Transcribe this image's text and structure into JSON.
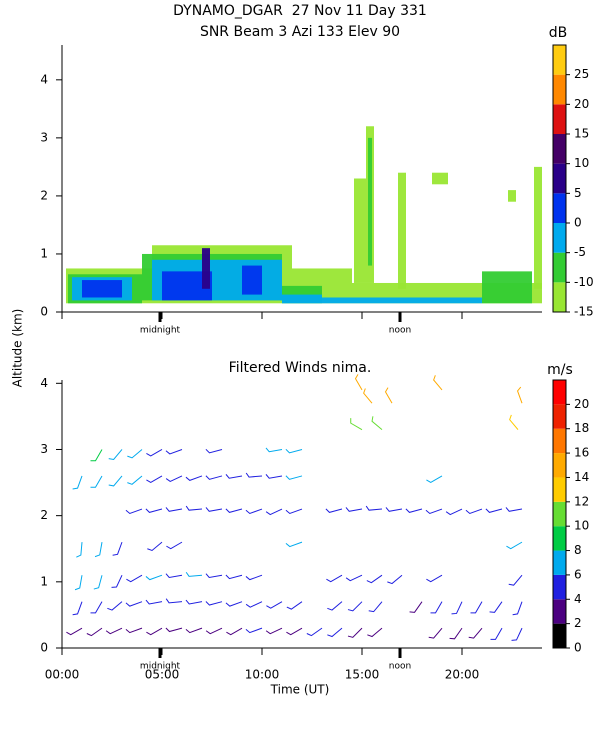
{
  "chart_data": [
    {
      "type": "heatmap",
      "title": "DYNAMO_DGAR  27 Nov 11 Day 331",
      "subtitle": "SNR Beam 3 Azi 133 Elev 90",
      "ylabel": "Altitude (km)",
      "xlim": [
        0,
        24
      ],
      "ylim": [
        0,
        4.6
      ],
      "yticks": [
        0,
        1,
        2,
        3,
        4
      ],
      "annotations": [
        {
          "text": "midnight",
          "x": 4.9
        },
        {
          "text": "noon",
          "x": 16.9
        }
      ],
      "colorbar_label": "dB",
      "clim": [
        -15,
        30
      ],
      "cticks": [
        -15,
        -10,
        -5,
        0,
        5,
        10,
        15,
        20,
        25
      ],
      "colors": [
        "#99e633",
        "#33cc33",
        "#00aaee",
        "#0033ee",
        "#2a0088",
        "#440066",
        "#dd1111",
        "#ff8800",
        "#ffcc11"
      ],
      "patches": [
        {
          "x": [
            0.2,
            4.5
          ],
          "y": [
            0.15,
            0.75
          ],
          "value": -12
        },
        {
          "x": [
            4.5,
            11.5
          ],
          "y": [
            0.15,
            1.15
          ],
          "value": -12
        },
        {
          "x": [
            11.5,
            14.5
          ],
          "y": [
            0.15,
            0.75
          ],
          "value": -12
        },
        {
          "x": [
            14.5,
            24
          ],
          "y": [
            0.15,
            0.5
          ],
          "value": -12
        },
        {
          "x": [
            14.6,
            15.2
          ],
          "y": [
            0.5,
            2.3
          ],
          "value": -12
        },
        {
          "x": [
            15.2,
            15.6
          ],
          "y": [
            0.5,
            3.2
          ],
          "value": -12
        },
        {
          "x": [
            16.8,
            17.2
          ],
          "y": [
            0.4,
            2.4
          ],
          "value": -12
        },
        {
          "x": [
            23.6,
            24
          ],
          "y": [
            0.4,
            2.5
          ],
          "value": -12
        },
        {
          "x": [
            18.5,
            19.3
          ],
          "y": [
            2.2,
            2.4
          ],
          "value": -12
        },
        {
          "x": [
            22.3,
            22.7
          ],
          "y": [
            1.9,
            2.1
          ],
          "value": -12
        },
        {
          "x": [
            0.3,
            4
          ],
          "y": [
            0.15,
            0.65
          ],
          "value": -7
        },
        {
          "x": [
            4,
            11
          ],
          "y": [
            0.2,
            1.0
          ],
          "value": -7
        },
        {
          "x": [
            11,
            13
          ],
          "y": [
            0.15,
            0.45
          ],
          "value": -7
        },
        {
          "x": [
            21,
            23.5
          ],
          "y": [
            0.15,
            0.7
          ],
          "value": -7
        },
        {
          "x": [
            15.3,
            15.5
          ],
          "y": [
            0.8,
            3.0
          ],
          "value": -7
        },
        {
          "x": [
            0.5,
            3.5
          ],
          "y": [
            0.2,
            0.6
          ],
          "value": -2
        },
        {
          "x": [
            4.5,
            11
          ],
          "y": [
            0.2,
            0.9
          ],
          "value": -2
        },
        {
          "x": [
            11,
            13
          ],
          "y": [
            0.15,
            0.3
          ],
          "value": -2
        },
        {
          "x": [
            13,
            21
          ],
          "y": [
            0.15,
            0.25
          ],
          "value": -2
        },
        {
          "x": [
            1,
            3
          ],
          "y": [
            0.25,
            0.55
          ],
          "value": 2
        },
        {
          "x": [
            5,
            7.5
          ],
          "y": [
            0.2,
            0.7
          ],
          "value": 2
        },
        {
          "x": [
            9,
            10
          ],
          "y": [
            0.3,
            0.8
          ],
          "value": 2
        },
        {
          "x": [
            7,
            7.4
          ],
          "y": [
            0.4,
            1.1
          ],
          "value": 7
        }
      ]
    },
    {
      "type": "barbs",
      "title": "Filtered Winds nima.",
      "xlabel": "Time (UT)",
      "xlim": [
        0,
        24
      ],
      "ylim": [
        0,
        4.05
      ],
      "yticks": [
        0,
        1,
        2,
        3,
        4
      ],
      "xticks": [
        {
          "value": 0,
          "label": "00:00"
        },
        {
          "value": 5,
          "label": "05:00"
        },
        {
          "value": 10,
          "label": "10:00"
        },
        {
          "value": 15,
          "label": "15:00"
        },
        {
          "value": 20,
          "label": "20:00"
        }
      ],
      "annotations": [
        {
          "text": "midnight",
          "x": 4.9
        },
        {
          "text": "noon",
          "x": 16.9
        }
      ],
      "colorbar_label": "m/s",
      "clim": [
        0,
        22
      ],
      "cticks": [
        0,
        2,
        4,
        6,
        8,
        10,
        12,
        14,
        16,
        18,
        20
      ],
      "colors": [
        "#000000",
        "#4b0080",
        "#2020e0",
        "#00aaee",
        "#00cc44",
        "#66dd33",
        "#ffcc00",
        "#ffaa00",
        "#ff7700",
        "#ee2200",
        "#ff0000"
      ],
      "barbs": [
        [
          1,
          0.3,
          3,
          240
        ],
        [
          2,
          0.3,
          3,
          235
        ],
        [
          3,
          0.3,
          2,
          245
        ],
        [
          4,
          0.3,
          3,
          250
        ],
        [
          5,
          0.3,
          3,
          240
        ],
        [
          6,
          0.3,
          3,
          255
        ],
        [
          7,
          0.3,
          2,
          250
        ],
        [
          8,
          0.3,
          3,
          245
        ],
        [
          9,
          0.3,
          3,
          240
        ],
        [
          10,
          0.3,
          4,
          250
        ],
        [
          11,
          0.3,
          3,
          245
        ],
        [
          12,
          0.3,
          3,
          240
        ],
        [
          13,
          0.3,
          4,
          235
        ],
        [
          14,
          0.3,
          4,
          230
        ],
        [
          15,
          0.3,
          3,
          225
        ],
        [
          16,
          0.3,
          2,
          230
        ],
        [
          19,
          0.3,
          3,
          220
        ],
        [
          20,
          0.3,
          3,
          215
        ],
        [
          21,
          0.3,
          3,
          220
        ],
        [
          22,
          0.3,
          4,
          210
        ],
        [
          23,
          0.3,
          5,
          205
        ],
        [
          1,
          0.7,
          4,
          200
        ],
        [
          2,
          0.7,
          4,
          210
        ],
        [
          3,
          0.7,
          5,
          230
        ],
        [
          4,
          0.7,
          4,
          250
        ],
        [
          5,
          0.7,
          5,
          260
        ],
        [
          6,
          0.7,
          4,
          265
        ],
        [
          7,
          0.7,
          5,
          260
        ],
        [
          8,
          0.7,
          4,
          255
        ],
        [
          9,
          0.7,
          5,
          250
        ],
        [
          10,
          0.7,
          4,
          245
        ],
        [
          11,
          0.7,
          4,
          240
        ],
        [
          12,
          0.7,
          5,
          235
        ],
        [
          14,
          0.7,
          4,
          230
        ],
        [
          15,
          0.7,
          5,
          225
        ],
        [
          16,
          0.7,
          4,
          220
        ],
        [
          18,
          0.7,
          3,
          215
        ],
        [
          19,
          0.7,
          4,
          210
        ],
        [
          20,
          0.7,
          4,
          205
        ],
        [
          21,
          0.7,
          5,
          210
        ],
        [
          22,
          0.7,
          4,
          215
        ],
        [
          23,
          0.7,
          5,
          200
        ],
        [
          1,
          1.1,
          6,
          190
        ],
        [
          2,
          1.1,
          6,
          195
        ],
        [
          3,
          1.1,
          5,
          205
        ],
        [
          4,
          1.1,
          5,
          240
        ],
        [
          5,
          1.1,
          6,
          250
        ],
        [
          6,
          1.1,
          5,
          260
        ],
        [
          7,
          1.1,
          6,
          265
        ],
        [
          8,
          1.1,
          5,
          260
        ],
        [
          9,
          1.1,
          5,
          255
        ],
        [
          10,
          1.1,
          5,
          250
        ],
        [
          14,
          1.1,
          4,
          240
        ],
        [
          15,
          1.1,
          5,
          245
        ],
        [
          16,
          1.1,
          4,
          235
        ],
        [
          17,
          1.1,
          4,
          230
        ],
        [
          19,
          1.1,
          5,
          240
        ],
        [
          23,
          1.1,
          5,
          220
        ],
        [
          1,
          1.6,
          6,
          185
        ],
        [
          2,
          1.6,
          6,
          190
        ],
        [
          3,
          1.6,
          5,
          200
        ],
        [
          5,
          1.6,
          5,
          230
        ],
        [
          6,
          1.6,
          5,
          240
        ],
        [
          12,
          1.6,
          6,
          250
        ],
        [
          23,
          1.6,
          6,
          240
        ],
        [
          4,
          2.1,
          5,
          250
        ],
        [
          5,
          2.1,
          4,
          255
        ],
        [
          6,
          2.1,
          5,
          260
        ],
        [
          7,
          2.1,
          4,
          265
        ],
        [
          8,
          2.1,
          5,
          260
        ],
        [
          9,
          2.1,
          4,
          255
        ],
        [
          10,
          2.1,
          5,
          250
        ],
        [
          11,
          2.1,
          5,
          245
        ],
        [
          12,
          2.1,
          4,
          250
        ],
        [
          14,
          2.1,
          5,
          255
        ],
        [
          15,
          2.1,
          5,
          260
        ],
        [
          16,
          2.1,
          5,
          265
        ],
        [
          17,
          2.1,
          4,
          260
        ],
        [
          18,
          2.1,
          5,
          255
        ],
        [
          19,
          2.1,
          4,
          250
        ],
        [
          20,
          2.1,
          5,
          245
        ],
        [
          21,
          2.1,
          5,
          250
        ],
        [
          22,
          2.1,
          5,
          255
        ],
        [
          23,
          2.1,
          4,
          260
        ],
        [
          1,
          2.6,
          6,
          200
        ],
        [
          2,
          2.6,
          7,
          210
        ],
        [
          3,
          2.6,
          6,
          220
        ],
        [
          4,
          2.6,
          6,
          230
        ],
        [
          5,
          2.6,
          5,
          240
        ],
        [
          6,
          2.6,
          5,
          245
        ],
        [
          7,
          2.6,
          5,
          250
        ],
        [
          8,
          2.6,
          5,
          255
        ],
        [
          9,
          2.6,
          5,
          260
        ],
        [
          10,
          2.6,
          5,
          265
        ],
        [
          11,
          2.6,
          5,
          260
        ],
        [
          12,
          2.6,
          6,
          255
        ],
        [
          19,
          2.6,
          7,
          240
        ],
        [
          2,
          3.0,
          8,
          210
        ],
        [
          3,
          3.0,
          6,
          220
        ],
        [
          4,
          3.0,
          6,
          230
        ],
        [
          5,
          3.0,
          5,
          240
        ],
        [
          6,
          3.0,
          5,
          250
        ],
        [
          8,
          3.0,
          5,
          255
        ],
        [
          11,
          3.0,
          6,
          260
        ],
        [
          12,
          3.0,
          6,
          255
        ],
        [
          15,
          3.3,
          11,
          300
        ],
        [
          16,
          3.3,
          11,
          310
        ],
        [
          22.8,
          3.3,
          12,
          320
        ],
        [
          15.5,
          3.7,
          14,
          320
        ],
        [
          16.5,
          3.7,
          14,
          330
        ],
        [
          23,
          3.7,
          14,
          340
        ],
        [
          15,
          3.9,
          15,
          330
        ],
        [
          19,
          3.9,
          15,
          320
        ]
      ]
    }
  ]
}
